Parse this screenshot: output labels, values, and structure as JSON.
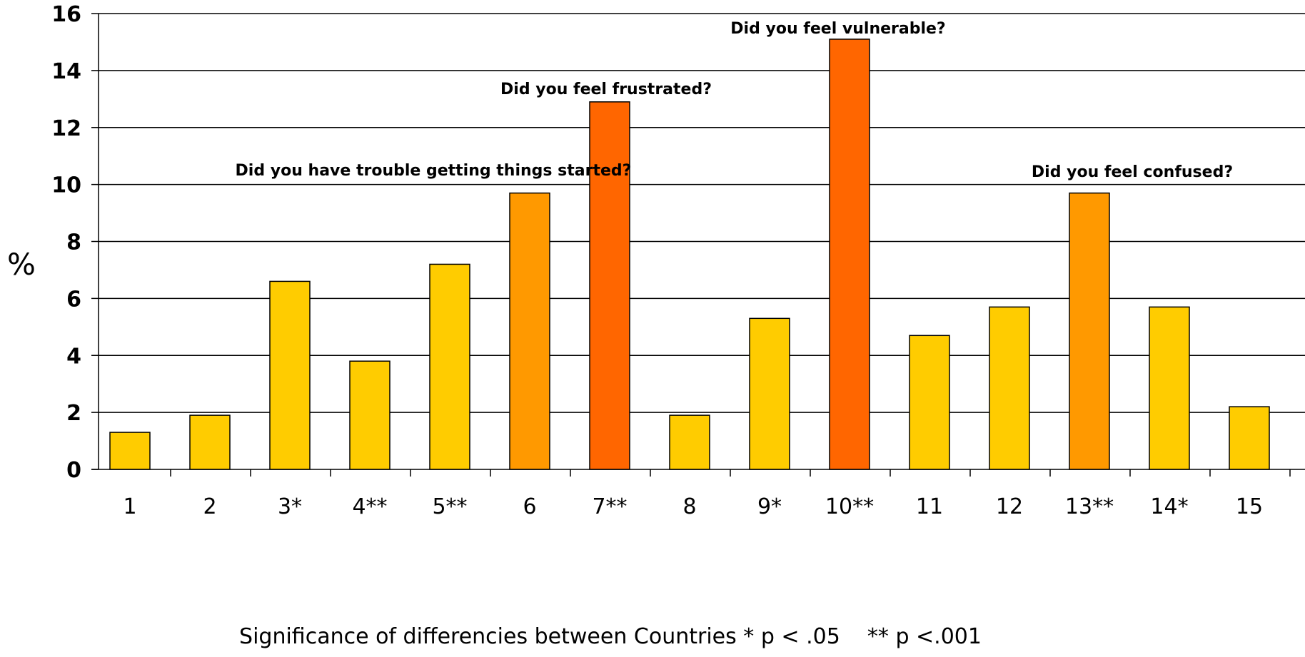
{
  "chart_data": {
    "type": "bar",
    "categories": [
      "1",
      "2",
      "3*",
      "4**",
      "5**",
      "6",
      "7**",
      "8",
      "9*",
      "10**",
      "11",
      "12",
      "13**",
      "14*",
      "15"
    ],
    "values": [
      1.3,
      1.9,
      6.6,
      3.8,
      7.2,
      9.7,
      12.9,
      1.9,
      5.3,
      15.1,
      4.7,
      5.7,
      9.7,
      5.7,
      2.2
    ],
    "bar_colors": [
      "#FFCC00",
      "#FFCC00",
      "#FFCC00",
      "#FFCC00",
      "#FFCC00",
      "#FF9900",
      "#FF6600",
      "#FFCC00",
      "#FFCC00",
      "#FF6600",
      "#FFCC00",
      "#FFCC00",
      "#FF9900",
      "#FFCC00",
      "#FFCC00"
    ],
    "ylim": [
      0,
      16
    ],
    "yticks": [
      "0",
      "2",
      "4",
      "6",
      "8",
      "10",
      "12",
      "14",
      "16"
    ],
    "ylabel": "%",
    "xlabel": "Significance of differencies between Countries * p < .05    ** p <.001",
    "grid": true,
    "annotations": [
      {
        "text": "Did you have trouble getting things started?",
        "category": "6"
      },
      {
        "text": "Did you feel frustrated?",
        "category": "7**"
      },
      {
        "text": "Did you feel vulnerable?",
        "category": "10**"
      },
      {
        "text": "Did you feel confused?",
        "category": "13**"
      }
    ]
  }
}
